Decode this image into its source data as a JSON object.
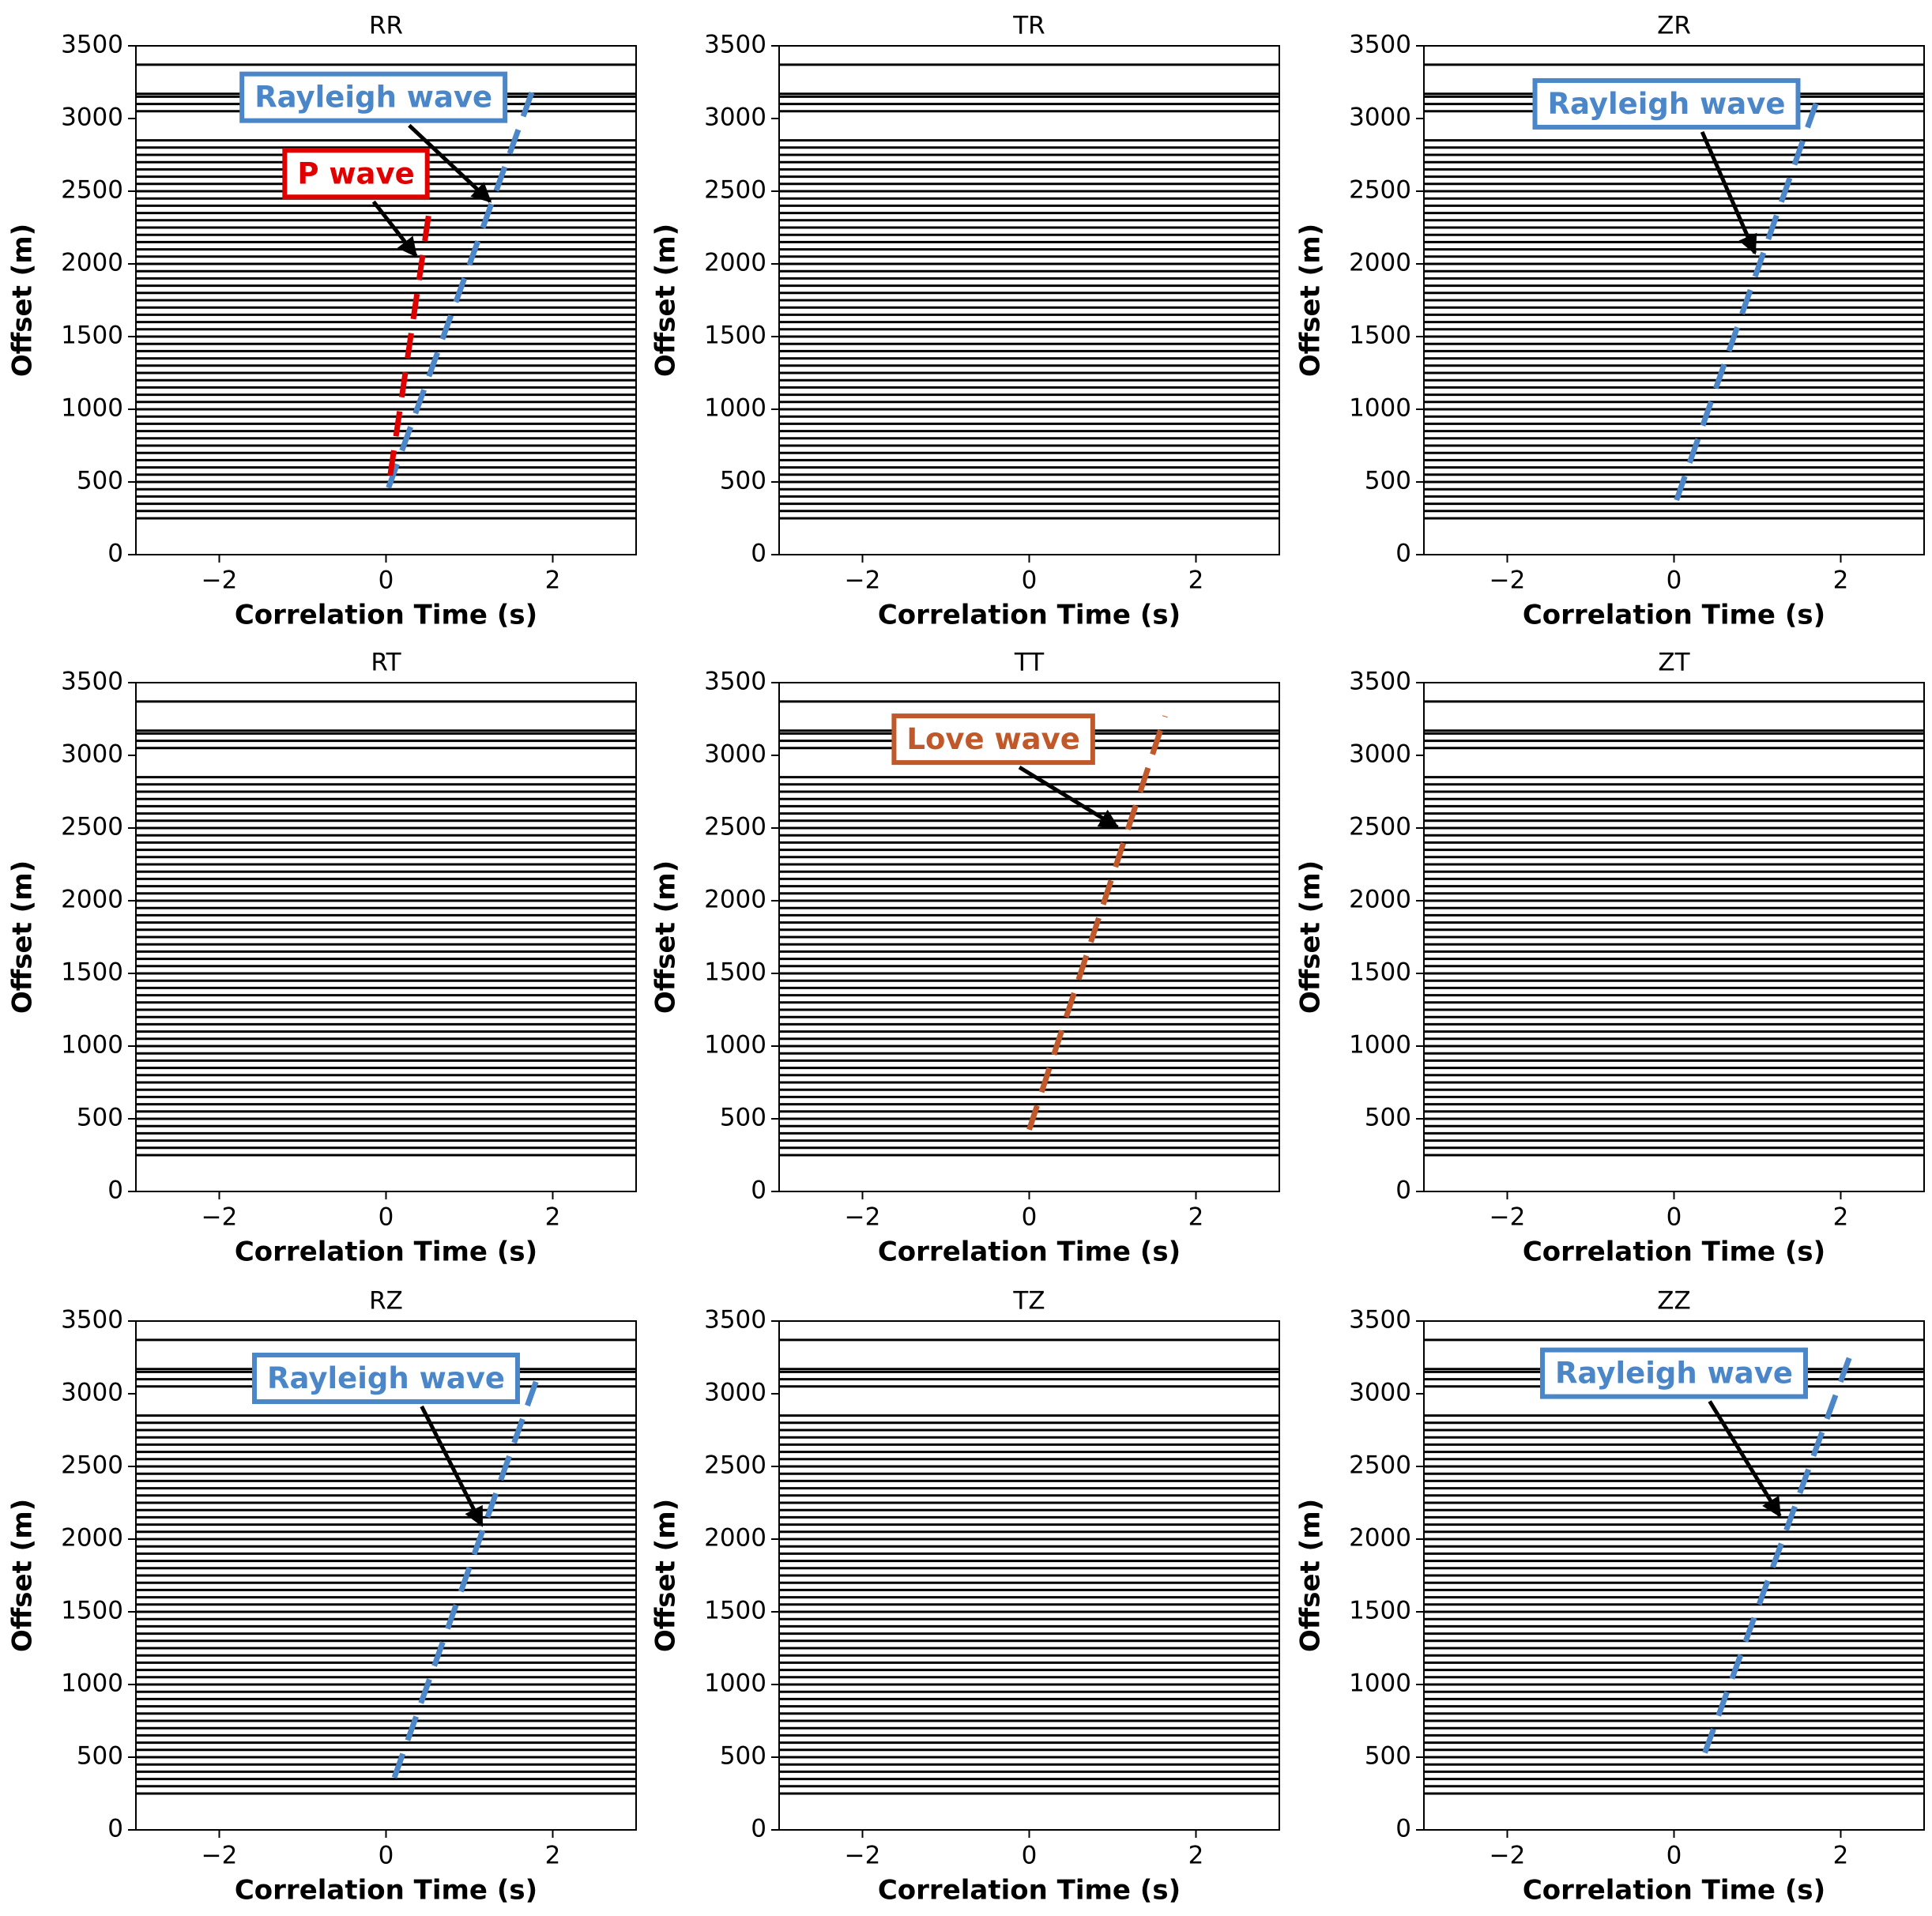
{
  "chart_data": [
    {
      "type": "wiggle",
      "title": "RR",
      "xlabel": "Correlation Time (s)",
      "ylabel": "Offset (m)",
      "xlim": [
        -3,
        3
      ],
      "ylim": [
        0,
        3500
      ],
      "xticks": [
        {
          "value": -2,
          "label": "−2"
        },
        0,
        2
      ],
      "yticks": [
        0,
        500,
        1000,
        1500,
        2000,
        2500,
        3000,
        3500
      ],
      "trace_color": "#000000",
      "trace_offsets": [
        250,
        300,
        350,
        400,
        450,
        500,
        550,
        600,
        650,
        700,
        750,
        800,
        850,
        900,
        950,
        1000,
        1050,
        1100,
        1150,
        1200,
        1250,
        1300,
        1350,
        1400,
        1450,
        1500,
        1550,
        1600,
        1650,
        1700,
        1750,
        1800,
        1850,
        1900,
        1950,
        2000,
        2050,
        2100,
        2150,
        2200,
        2250,
        2300,
        2350,
        2400,
        2450,
        2500,
        2550,
        2600,
        2650,
        2700,
        2750,
        2800,
        2850,
        3050,
        3100,
        3150,
        3170,
        3370
      ],
      "dashed_lines": [
        {
          "color": "#4a86c8",
          "x": [
            0.03,
            1.75
          ],
          "y": [
            460,
            3180
          ]
        },
        {
          "color": "#e00000",
          "x": [
            0.05,
            0.51
          ],
          "y": [
            545,
            2330
          ]
        }
      ],
      "annotations": [
        {
          "text": "Rayleigh wave",
          "color": "#4a86c8",
          "xytext": [
            -0.15,
            3135
          ],
          "xy": [
            1.25,
            2430
          ]
        },
        {
          "text": "P wave",
          "color": "#e00000",
          "xytext": [
            -0.36,
            2610
          ],
          "xy": [
            0.36,
            2055
          ]
        }
      ]
    },
    {
      "type": "wiggle",
      "title": "TR",
      "xlabel": "Correlation Time (s)",
      "ylabel": "Offset (m)",
      "xlim": [
        -3,
        3
      ],
      "ylim": [
        0,
        3500
      ],
      "xticks": [
        {
          "value": -2,
          "label": "−2"
        },
        0,
        2
      ],
      "yticks": [
        0,
        500,
        1000,
        1500,
        2000,
        2500,
        3000,
        3500
      ],
      "trace_color": "#000000",
      "trace_offsets": [
        250,
        300,
        350,
        400,
        450,
        500,
        550,
        600,
        650,
        700,
        750,
        800,
        850,
        900,
        950,
        1000,
        1050,
        1100,
        1150,
        1200,
        1250,
        1300,
        1350,
        1400,
        1450,
        1500,
        1550,
        1600,
        1650,
        1700,
        1750,
        1800,
        1850,
        1900,
        1950,
        2000,
        2050,
        2100,
        2150,
        2200,
        2250,
        2300,
        2350,
        2400,
        2450,
        2500,
        2550,
        2600,
        2650,
        2700,
        2750,
        2800,
        2850,
        3050,
        3100,
        3150,
        3170,
        3370
      ],
      "dashed_lines": [],
      "annotations": []
    },
    {
      "type": "wiggle",
      "title": "ZR",
      "xlabel": "Correlation Time (s)",
      "ylabel": "Offset (m)",
      "xlim": [
        -3,
        3
      ],
      "ylim": [
        0,
        3500
      ],
      "xticks": [
        {
          "value": -2,
          "label": "−2"
        },
        0,
        2
      ],
      "yticks": [
        0,
        500,
        1000,
        1500,
        2000,
        2500,
        3000,
        3500
      ],
      "trace_color": "#000000",
      "trace_offsets": [
        250,
        300,
        350,
        400,
        450,
        500,
        550,
        600,
        650,
        700,
        750,
        800,
        850,
        900,
        950,
        1000,
        1050,
        1100,
        1150,
        1200,
        1250,
        1300,
        1350,
        1400,
        1450,
        1500,
        1550,
        1600,
        1650,
        1700,
        1750,
        1800,
        1850,
        1900,
        1950,
        2000,
        2050,
        2100,
        2150,
        2200,
        2250,
        2300,
        2350,
        2400,
        2450,
        2500,
        2550,
        2600,
        2650,
        2700,
        2750,
        2800,
        2850,
        3050,
        3100,
        3150,
        3170,
        3370
      ],
      "dashed_lines": [
        {
          "color": "#4a86c8",
          "x": [
            0.03,
            1.75
          ],
          "y": [
            375,
            3180
          ]
        }
      ],
      "annotations": [
        {
          "text": "Rayleigh wave",
          "color": "#4a86c8",
          "xytext": [
            -0.09,
            3090
          ],
          "xy": [
            0.97,
            2075
          ]
        }
      ]
    },
    {
      "type": "wiggle",
      "title": "RT",
      "xlabel": "Correlation Time (s)",
      "ylabel": "Offset (m)",
      "xlim": [
        -3,
        3
      ],
      "ylim": [
        0,
        3500
      ],
      "xticks": [
        {
          "value": -2,
          "label": "−2"
        },
        0,
        2
      ],
      "yticks": [
        0,
        500,
        1000,
        1500,
        2000,
        2500,
        3000,
        3500
      ],
      "trace_color": "#000000",
      "trace_offsets": [
        250,
        300,
        350,
        400,
        450,
        500,
        550,
        600,
        650,
        700,
        750,
        800,
        850,
        900,
        950,
        1000,
        1050,
        1100,
        1150,
        1200,
        1250,
        1300,
        1350,
        1400,
        1450,
        1500,
        1550,
        1600,
        1650,
        1700,
        1750,
        1800,
        1850,
        1900,
        1950,
        2000,
        2050,
        2100,
        2150,
        2200,
        2250,
        2300,
        2350,
        2400,
        2450,
        2500,
        2550,
        2600,
        2650,
        2700,
        2750,
        2800,
        2850,
        3050,
        3100,
        3150,
        3170,
        3370
      ],
      "dashed_lines": [],
      "annotations": []
    },
    {
      "type": "wiggle",
      "title": "TT",
      "xlabel": "Correlation Time (s)",
      "ylabel": "Offset (m)",
      "xlim": [
        -3,
        3
      ],
      "ylim": [
        0,
        3500
      ],
      "xticks": [
        {
          "value": -2,
          "label": "−2"
        },
        0,
        2
      ],
      "yticks": [
        0,
        500,
        1000,
        1500,
        2000,
        2500,
        3000,
        3500
      ],
      "trace_color": "#000000",
      "trace_offsets": [
        250,
        300,
        350,
        400,
        450,
        500,
        550,
        600,
        650,
        700,
        750,
        800,
        850,
        900,
        950,
        1000,
        1050,
        1100,
        1150,
        1200,
        1250,
        1300,
        1350,
        1400,
        1450,
        1500,
        1550,
        1600,
        1650,
        1700,
        1750,
        1800,
        1850,
        1900,
        1950,
        2000,
        2050,
        2100,
        2150,
        2200,
        2250,
        2300,
        2350,
        2400,
        2450,
        2500,
        2550,
        2600,
        2650,
        2700,
        2750,
        2800,
        2850,
        3050,
        3100,
        3150,
        3170,
        3370
      ],
      "dashed_lines": [
        {
          "color": "#c0582a",
          "x": [
            0,
            1.63
          ],
          "y": [
            425,
            3270
          ]
        }
      ],
      "annotations": [
        {
          "text": "Love wave",
          "color": "#c0582a",
          "xytext": [
            -0.43,
            3100
          ],
          "xy": [
            1.06,
            2505
          ]
        }
      ]
    },
    {
      "type": "wiggle",
      "title": "ZT",
      "xlabel": "Correlation Time (s)",
      "ylabel": "Offset (m)",
      "xlim": [
        -3,
        3
      ],
      "ylim": [
        0,
        3500
      ],
      "xticks": [
        {
          "value": -2,
          "label": "−2"
        },
        0,
        2
      ],
      "yticks": [
        0,
        500,
        1000,
        1500,
        2000,
        2500,
        3000,
        3500
      ],
      "trace_color": "#000000",
      "trace_offsets": [
        250,
        300,
        350,
        400,
        450,
        500,
        550,
        600,
        650,
        700,
        750,
        800,
        850,
        900,
        950,
        1000,
        1050,
        1100,
        1150,
        1200,
        1250,
        1300,
        1350,
        1400,
        1450,
        1500,
        1550,
        1600,
        1650,
        1700,
        1750,
        1800,
        1850,
        1900,
        1950,
        2000,
        2050,
        2100,
        2150,
        2200,
        2250,
        2300,
        2350,
        2400,
        2450,
        2500,
        2550,
        2600,
        2650,
        2700,
        2750,
        2800,
        2850,
        3050,
        3100,
        3150,
        3170,
        3370
      ],
      "dashed_lines": [],
      "annotations": []
    },
    {
      "type": "wiggle",
      "title": "RZ",
      "xlabel": "Correlation Time (s)",
      "ylabel": "Offset (m)",
      "xlim": [
        -3,
        3
      ],
      "ylim": [
        0,
        3500
      ],
      "xticks": [
        {
          "value": -2,
          "label": "−2"
        },
        0,
        2
      ],
      "yticks": [
        0,
        500,
        1000,
        1500,
        2000,
        2500,
        3000,
        3500
      ],
      "trace_color": "#000000",
      "trace_offsets": [
        250,
        300,
        350,
        400,
        450,
        500,
        550,
        600,
        650,
        700,
        750,
        800,
        850,
        900,
        950,
        1000,
        1050,
        1100,
        1150,
        1200,
        1250,
        1300,
        1350,
        1400,
        1450,
        1500,
        1550,
        1600,
        1650,
        1700,
        1750,
        1800,
        1850,
        1900,
        1950,
        2000,
        2050,
        2100,
        2150,
        2200,
        2250,
        2300,
        2350,
        2400,
        2450,
        2500,
        2550,
        2600,
        2650,
        2700,
        2750,
        2800,
        2850,
        3050,
        3100,
        3150,
        3170,
        3370
      ],
      "dashed_lines": [
        {
          "color": "#4a86c8",
          "x": [
            0.1,
            1.85
          ],
          "y": [
            360,
            3165
          ]
        }
      ],
      "annotations": [
        {
          "text": "Rayleigh wave",
          "color": "#4a86c8",
          "xytext": [
            0,
            3095
          ],
          "xy": [
            1.15,
            2095
          ]
        }
      ]
    },
    {
      "type": "wiggle",
      "title": "TZ",
      "xlabel": "Correlation Time (s)",
      "ylabel": "Offset (m)",
      "xlim": [
        -3,
        3
      ],
      "ylim": [
        0,
        3500
      ],
      "xticks": [
        {
          "value": -2,
          "label": "−2"
        },
        0,
        2
      ],
      "yticks": [
        0,
        500,
        1000,
        1500,
        2000,
        2500,
        3000,
        3500
      ],
      "trace_color": "#000000",
      "trace_offsets": [
        250,
        300,
        350,
        400,
        450,
        500,
        550,
        600,
        650,
        700,
        750,
        800,
        850,
        900,
        950,
        1000,
        1050,
        1100,
        1150,
        1200,
        1250,
        1300,
        1350,
        1400,
        1450,
        1500,
        1550,
        1600,
        1650,
        1700,
        1750,
        1800,
        1850,
        1900,
        1950,
        2000,
        2050,
        2100,
        2150,
        2200,
        2250,
        2300,
        2350,
        2400,
        2450,
        2500,
        2550,
        2600,
        2650,
        2700,
        2750,
        2800,
        2850,
        3050,
        3100,
        3150,
        3170,
        3370
      ],
      "dashed_lines": [],
      "annotations": []
    },
    {
      "type": "wiggle",
      "title": "ZZ",
      "xlabel": "Correlation Time (s)",
      "ylabel": "Offset (m)",
      "xlim": [
        -3,
        3
      ],
      "ylim": [
        0,
        3500
      ],
      "xticks": [
        {
          "value": -2,
          "label": "−2"
        },
        0,
        2
      ],
      "yticks": [
        0,
        500,
        1000,
        1500,
        2000,
        2500,
        3000,
        3500
      ],
      "trace_color": "#000000",
      "trace_offsets": [
        250,
        300,
        350,
        400,
        450,
        500,
        550,
        600,
        650,
        700,
        750,
        800,
        850,
        900,
        950,
        1000,
        1050,
        1100,
        1150,
        1200,
        1250,
        1300,
        1350,
        1400,
        1450,
        1500,
        1550,
        1600,
        1650,
        1700,
        1750,
        1800,
        1850,
        1900,
        1950,
        2000,
        2050,
        2100,
        2150,
        2200,
        2250,
        2300,
        2350,
        2400,
        2450,
        2500,
        2550,
        2600,
        2650,
        2700,
        2750,
        2800,
        2850,
        3050,
        3100,
        3150,
        3170,
        3370
      ],
      "dashed_lines": [
        {
          "color": "#4a86c8",
          "x": [
            0.37,
            2.13
          ],
          "y": [
            530,
            3290
          ]
        }
      ],
      "annotations": [
        {
          "text": "Rayleigh wave",
          "color": "#4a86c8",
          "xytext": [
            0,
            3130
          ],
          "xy": [
            1.27,
            2160
          ]
        }
      ]
    }
  ]
}
